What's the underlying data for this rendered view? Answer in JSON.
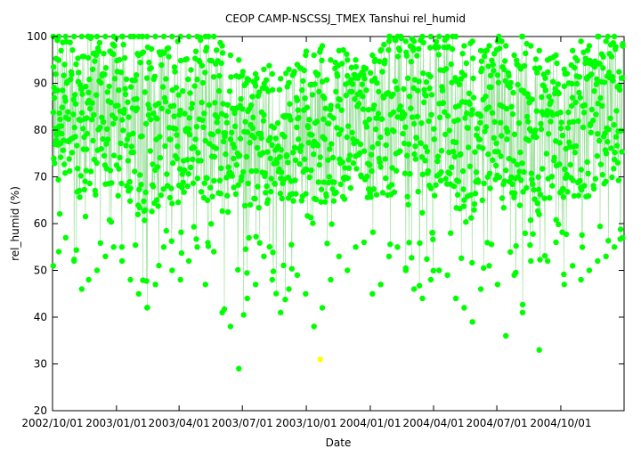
{
  "chart_data": {
    "type": "scatter",
    "title": "CEOP CAMP-NSCSSJ_TMEX Tanshui  rel_humid",
    "xlabel": "Date",
    "ylabel": "rel_humid (%)",
    "ylim": [
      20,
      100
    ],
    "xlim": [
      "2002-10-01",
      "2004-12-31"
    ],
    "grid": false,
    "legend": "none",
    "y_ticks": [
      "20",
      "30",
      "40",
      "50",
      "60",
      "70",
      "80",
      "90",
      "100"
    ],
    "x_ticks": [
      {
        "date": "2002-10-01",
        "label": "2002/10/01"
      },
      {
        "date": "2003-01-01",
        "label": "2003/01/01"
      },
      {
        "date": "2003-04-01",
        "label": "2003/04/01"
      },
      {
        "date": "2003-07-01",
        "label": "2003/07/01"
      },
      {
        "date": "2003-10-01",
        "label": "2003/10/01"
      },
      {
        "date": "2004-01-01",
        "label": "2004/01/01"
      },
      {
        "date": "2004-04-01",
        "label": "2004/04/01"
      },
      {
        "date": "2004-07-01",
        "label": "2004/07/01"
      },
      {
        "date": "2004-10-01",
        "label": "2004/10/01"
      }
    ],
    "colors": {
      "series": "#00ff00",
      "connector": "#9be09b",
      "outlier": "#ffff00"
    },
    "series": [
      {
        "x": [
          "2002-10-02",
          "2002-10-10",
          "2002-10-20",
          "2002-11-01",
          "2002-11-12",
          "2002-11-22",
          "2002-12-04",
          "2002-12-16",
          "2002-12-28",
          "2003-01-09",
          "2003-01-21",
          "2003-02-02",
          "2003-02-14",
          "2003-02-26",
          "2003-03-10",
          "2003-03-22",
          "2003-04-03",
          "2003-04-15",
          "2003-04-27",
          "2003-05-09",
          "2003-05-21",
          "2003-06-02",
          "2003-06-14",
          "2003-06-26",
          "2003-07-08",
          "2003-07-20",
          "2003-08-01",
          "2003-08-13",
          "2003-08-25",
          "2003-09-06",
          "2003-09-18",
          "2003-09-30",
          "2003-10-12",
          "2003-10-24",
          "2003-11-05",
          "2003-11-17",
          "2003-11-29",
          "2003-12-11",
          "2003-12-23",
          "2004-01-04",
          "2004-01-16",
          "2004-01-28",
          "2004-02-09",
          "2004-02-21",
          "2004-03-04",
          "2004-03-16",
          "2004-03-28",
          "2004-04-09",
          "2004-04-21",
          "2004-05-03",
          "2004-05-15",
          "2004-05-27",
          "2004-06-08",
          "2004-06-20",
          "2004-07-02",
          "2004-07-14",
          "2004-07-26",
          "2004-08-07",
          "2004-08-19",
          "2004-08-31",
          "2004-09-12",
          "2004-09-24",
          "2004-10-06",
          "2004-10-18",
          "2004-10-30",
          "2004-11-11",
          "2004-11-23",
          "2004-12-05",
          "2004-12-17",
          "2004-12-29"
        ],
        "y_max": [
          100,
          100,
          100,
          100,
          100,
          100,
          100,
          100,
          100,
          100,
          100,
          100,
          100,
          100,
          100,
          100,
          100,
          100,
          100,
          100,
          100,
          98,
          96,
          95,
          91,
          92,
          93,
          92,
          91,
          93,
          94,
          96,
          96,
          98,
          95,
          97,
          95,
          95,
          93,
          96,
          97,
          99,
          100,
          99,
          99,
          100,
          100,
          100,
          100,
          100,
          98,
          99,
          97,
          98,
          99,
          98,
          96,
          100,
          98,
          97,
          95,
          96,
          93,
          97,
          99,
          98,
          100,
          99,
          100,
          98
        ],
        "y_min": [
          51,
          54,
          57,
          52,
          46,
          48,
          50,
          53,
          55,
          52,
          48,
          45,
          42,
          47,
          55,
          50,
          48,
          52,
          55,
          47,
          54,
          41,
          38,
          29,
          44,
          47,
          53,
          48,
          41,
          46,
          49,
          45,
          38,
          42,
          48,
          53,
          50,
          55,
          56,
          45,
          47,
          53,
          55,
          50,
          46,
          44,
          48,
          50,
          49,
          44,
          42,
          39,
          46,
          51,
          47,
          36,
          49,
          41,
          52,
          33,
          52,
          56,
          47,
          51,
          48,
          50,
          52,
          53,
          55,
          57
        ],
        "lower_mean": [
          64,
          66,
          67,
          63,
          60,
          61,
          60,
          62,
          63,
          60,
          58,
          56,
          54,
          57,
          61,
          59,
          60,
          62,
          63,
          59,
          61,
          58,
          57,
          56,
          58,
          60,
          62,
          60,
          57,
          59,
          61,
          58,
          55,
          57,
          60,
          62,
          61,
          63,
          63,
          59,
          60,
          62,
          63,
          61,
          58,
          57,
          59,
          61,
          60,
          57,
          56,
          55,
          58,
          60,
          58,
          56,
          60,
          57,
          61,
          55,
          61,
          63,
          60,
          61,
          60,
          61,
          62,
          62,
          63,
          64
        ],
        "upper_mean": [
          92,
          95,
          97,
          96,
          94,
          93,
          95,
          96,
          97,
          96,
          95,
          93,
          92,
          94,
          96,
          95,
          94,
          95,
          96,
          95,
          93,
          88,
          86,
          85,
          84,
          86,
          87,
          85,
          84,
          86,
          88,
          89,
          88,
          90,
          89,
          90,
          89,
          90,
          89,
          90,
          91,
          93,
          95,
          94,
          94,
          96,
          96,
          95,
          95,
          94,
          93,
          93,
          92,
          93,
          93,
          92,
          91,
          95,
          93,
          92,
          90,
          91,
          89,
          92,
          94,
          93,
          95,
          94,
          95,
          93
        ]
      }
    ],
    "outliers": [
      {
        "x": "2003-10-21",
        "y": 31
      }
    ]
  }
}
